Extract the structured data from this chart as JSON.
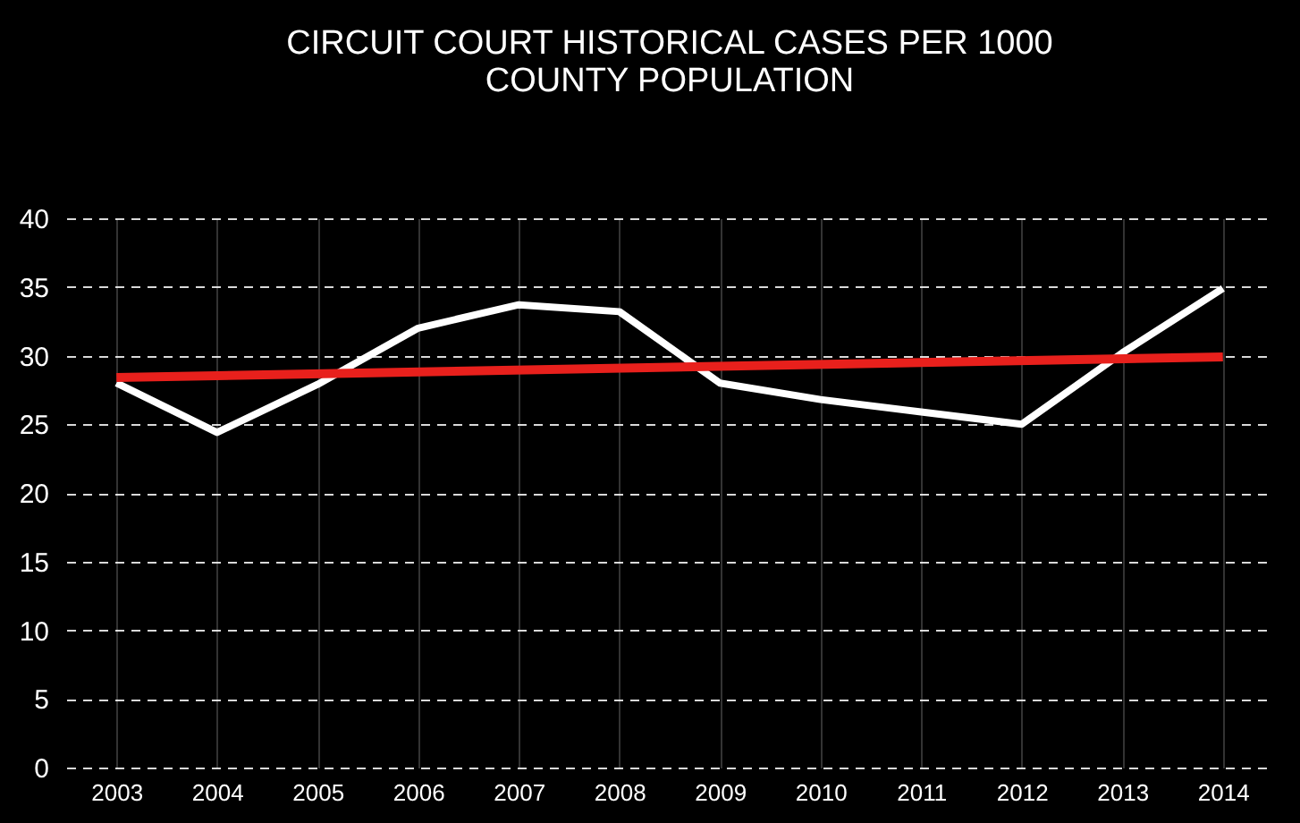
{
  "chart_data": {
    "type": "line",
    "title": "CIRCUIT COURT HISTORICAL CASES PER 1000\nCOUNTY POPULATION",
    "x": [
      2003,
      2004,
      2005,
      2006,
      2007,
      2008,
      2009,
      2010,
      2011,
      2012,
      2013,
      2014
    ],
    "series": [
      {
        "color": "#ffffff",
        "values": [
          28,
          24.4,
          27.9,
          32,
          33.7,
          33.2,
          28,
          26.8,
          25.9,
          25,
          30.2,
          34.9
        ]
      },
      {
        "type": "line",
        "color": "#e8201c",
        "x": [
          2003,
          2014
        ],
        "values": [
          28.4,
          29.9
        ]
      }
    ],
    "xlim": [
      2002.5,
      2014.5
    ],
    "xticks": [
      2003,
      2004,
      2005,
      2006,
      2007,
      2008,
      2009,
      2010,
      2011,
      2012,
      2013,
      2014
    ],
    "ylim": [
      0,
      40
    ],
    "yticks": [
      0,
      5,
      10,
      15,
      20,
      25,
      30,
      35,
      40
    ],
    "grid": true,
    "marker": "none",
    "line_style": "solid"
  }
}
